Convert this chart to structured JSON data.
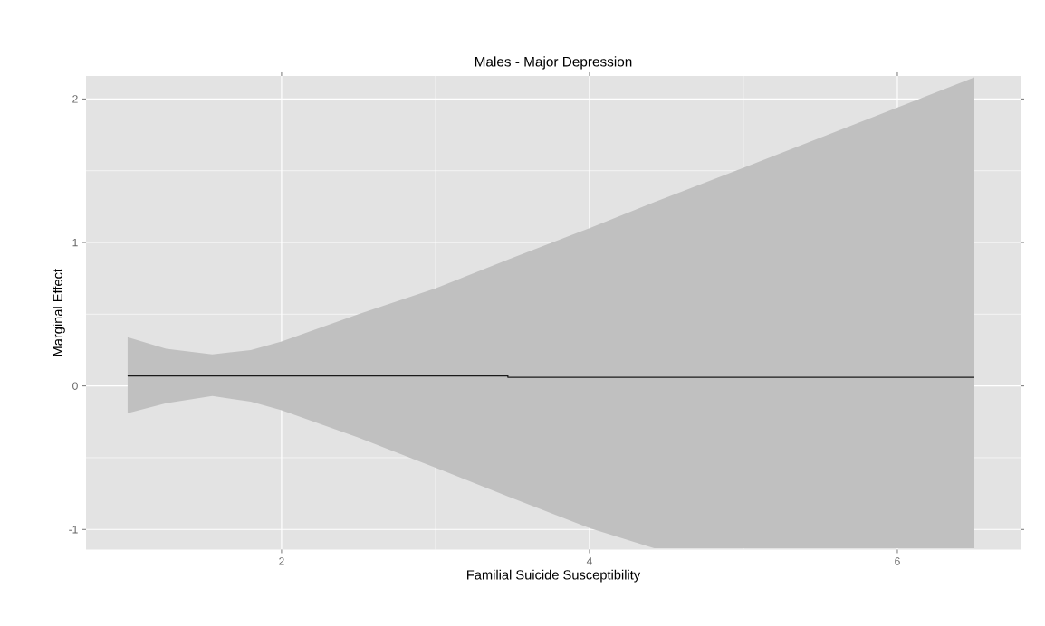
{
  "chart_data": {
    "type": "line",
    "title": "Males - Major Depression",
    "xlabel": "Familial Suicide Susceptibility",
    "ylabel": "Marginal Effect",
    "series": [
      {
        "color": "#1a1a1a",
        "x": [
          1,
          1.25,
          1.55,
          1.8,
          2,
          2.5,
          3,
          3.47,
          3.47,
          4,
          4.42,
          5,
          5.5,
          6,
          6.5
        ],
        "values": [
          0.07,
          0.07,
          0.07,
          0.07,
          0.07,
          0.07,
          0.07,
          0.07,
          0.06,
          0.06,
          0.06,
          0.06,
          0.06,
          0.06,
          0.06
        ],
        "lower": [
          -0.19,
          -0.12,
          -0.07,
          -0.11,
          -0.17,
          -0.36,
          -0.57,
          -0.77,
          -0.77,
          -0.99,
          -1.13,
          -1.13,
          -1.13,
          -1.13,
          -1.13
        ],
        "upper": [
          0.34,
          0.26,
          0.22,
          0.25,
          0.31,
          0.5,
          0.68,
          0.88,
          0.88,
          1.1,
          1.28,
          1.52,
          1.73,
          1.94,
          2.15
        ]
      }
    ],
    "xlim": [
      0.73,
      6.8
    ],
    "ylim": [
      -1.14,
      2.16
    ],
    "xticks": [
      2,
      4,
      6
    ],
    "yticks": [
      -1,
      0,
      1,
      2
    ],
    "grid": true
  }
}
